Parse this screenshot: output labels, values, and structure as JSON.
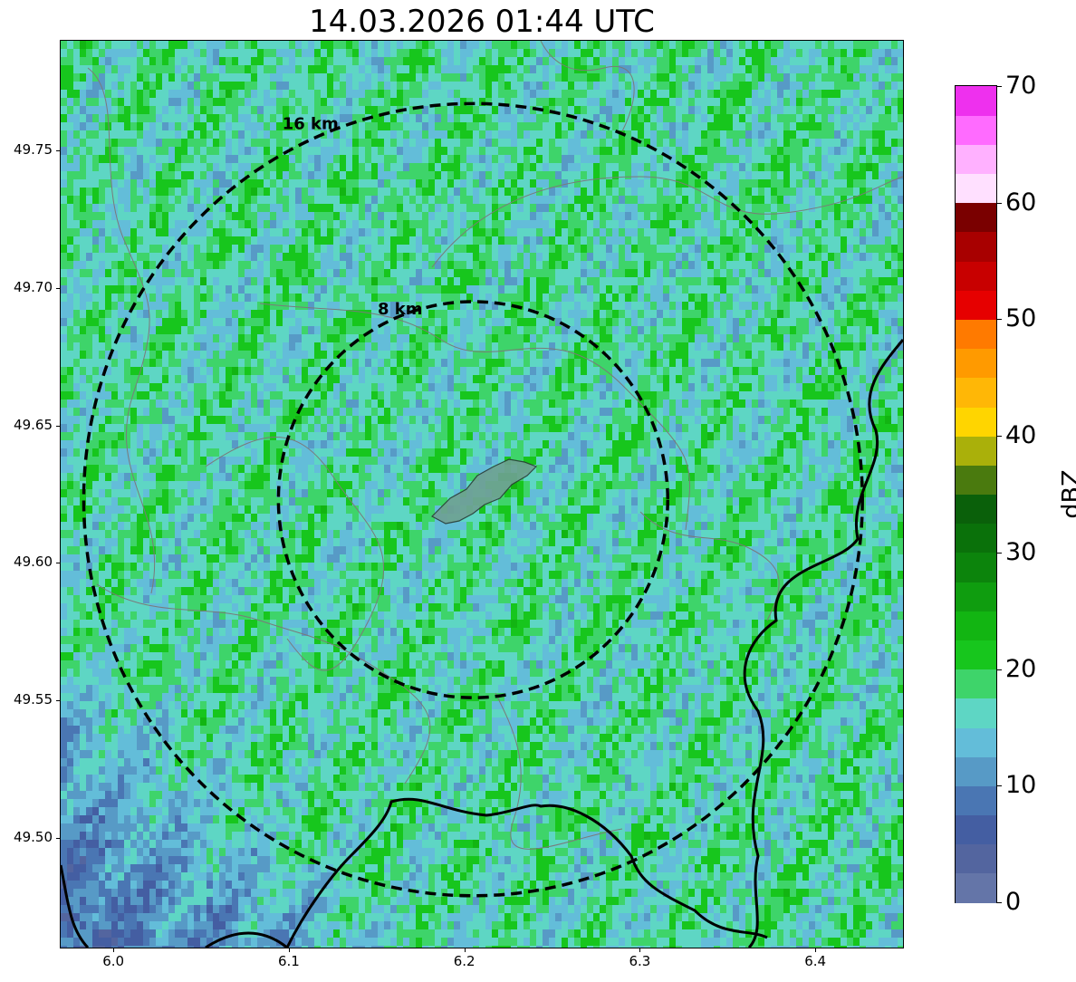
{
  "title": "14.03.2026 01:44 UTC",
  "map": {
    "lon_range": [
      5.97,
      6.45
    ],
    "lat_range": [
      49.46,
      49.79
    ],
    "center": {
      "lon": 6.205,
      "lat": 49.623
    },
    "x_ticks": [
      "6.0",
      "6.1",
      "6.2",
      "6.3",
      "6.4"
    ],
    "y_ticks": [
      "49.75",
      "49.70",
      "49.65",
      "49.60",
      "49.55",
      "49.50"
    ],
    "rings": [
      {
        "radius_km": 16,
        "label": "16 km"
      },
      {
        "radius_km": 8,
        "label": "8 km"
      }
    ],
    "field_dominant_dbz": [
      15,
      20
    ]
  },
  "colorbar": {
    "label": "dBZ",
    "ticks": [
      "70",
      "60",
      "50",
      "40",
      "30",
      "20",
      "10",
      "0"
    ],
    "min": 0,
    "max": 70,
    "step": 2.5,
    "colors": [
      "#6475a8",
      "#53659f",
      "#445ea2",
      "#4a76b3",
      "#579ac6",
      "#63bdd9",
      "#5ed6c4",
      "#3ed46a",
      "#17c61d",
      "#12b512",
      "#0f9d0f",
      "#0c840c",
      "#0a710a",
      "#0a600a",
      "#4a7a0e",
      "#aab00a",
      "#ffd500",
      "#ffb706",
      "#ff9a00",
      "#ff7a00",
      "#e60000",
      "#c80000",
      "#a80000",
      "#7a0000",
      "#ffe0ff",
      "#ffb1ff",
      "#ff6bff",
      "#ee30ee"
    ]
  }
}
